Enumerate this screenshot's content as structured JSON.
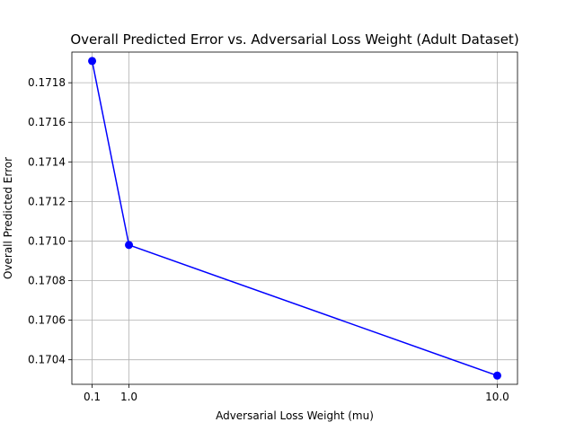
{
  "chart_data": {
    "type": "line",
    "title": "Overall Predicted Error vs. Adversarial Loss Weight (Adult Dataset)",
    "xlabel": "Adversarial Loss Weight (mu)",
    "ylabel": "Overall Predicted Error",
    "x": [
      0.1,
      1.0,
      10.0
    ],
    "x_tick_labels": [
      "0.1",
      "1.0",
      "10.0"
    ],
    "series": [
      {
        "values": [
          0.17191,
          0.17098,
          0.17032
        ]
      }
    ],
    "xlim": [
      -0.395,
      10.495
    ],
    "ylim": [
      0.170276,
      0.171955
    ],
    "y_ticks": [
      0.1704,
      0.1706,
      0.1708,
      0.171,
      0.1712,
      0.1714,
      0.1716,
      0.1718
    ],
    "y_tick_labels": [
      "0.1704",
      "0.1706",
      "0.1708",
      "0.1710",
      "0.1712",
      "0.1714",
      "0.1716",
      "0.1718"
    ],
    "grid": true,
    "line_color": "#0000ff",
    "marker": "circle"
  }
}
